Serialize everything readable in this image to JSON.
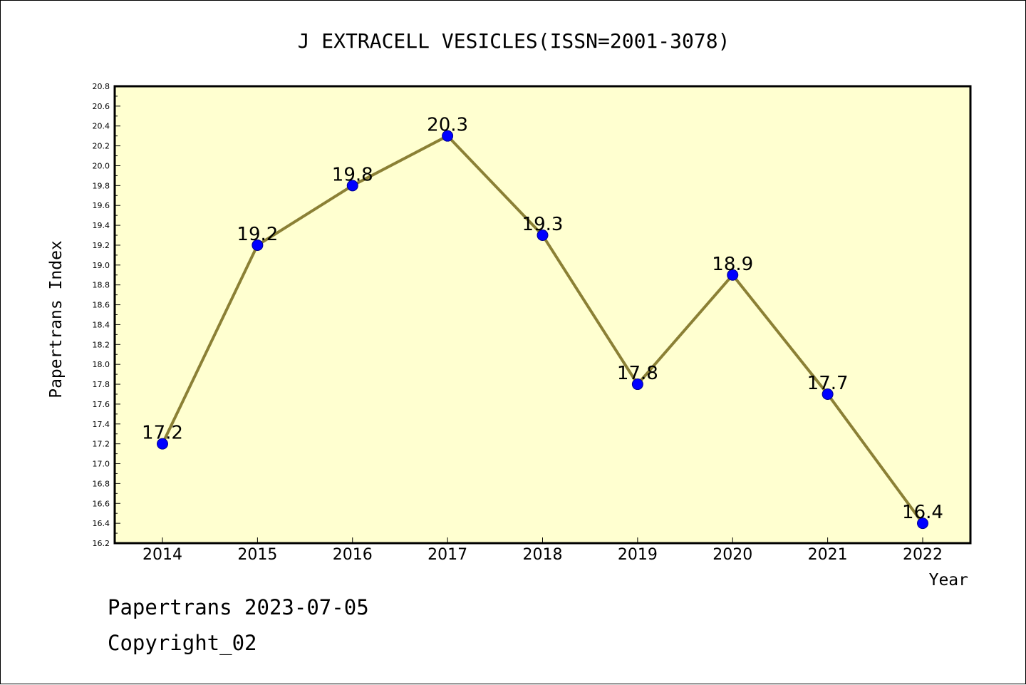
{
  "chart_data": {
    "type": "line",
    "title": "J EXTRACELL VESICLES(ISSN=2001-3078)",
    "xlabel": "Year",
    "ylabel": "Papertrans Index",
    "categories": [
      "2014",
      "2015",
      "2016",
      "2017",
      "2018",
      "2019",
      "2020",
      "2021",
      "2022"
    ],
    "values": [
      17.2,
      19.2,
      19.8,
      20.3,
      19.3,
      17.8,
      18.9,
      17.7,
      16.4
    ],
    "data_labels": [
      "17.2",
      "19.2",
      "19.8",
      "20.3",
      "19.3",
      "17.8",
      "18.9",
      "17.7",
      "16.4"
    ],
    "ylim": [
      16.2,
      20.8
    ],
    "y_tick_step": 0.2,
    "grid": false,
    "legend": "none",
    "colors": {
      "plot_background": "#ffffd0",
      "line": "#8b8035",
      "marker": "#0000ff",
      "marker_edge": "#00008b"
    }
  },
  "footer": {
    "line1": "Papertrans 2023-07-05",
    "line2": "Copyright_02"
  }
}
